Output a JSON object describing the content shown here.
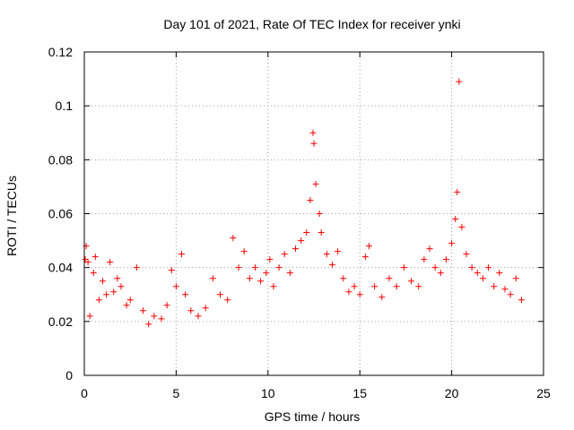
{
  "chart_data": {
    "type": "scatter",
    "title": "Day 101 of 2021, Rate Of TEC Index for receiver ynki",
    "xlabel": "GPS time / hours",
    "ylabel": "ROTI / TECUs",
    "xlim": [
      0,
      25
    ],
    "ylim": [
      0,
      0.12
    ],
    "xticks": [
      0,
      5,
      10,
      15,
      20,
      25
    ],
    "xtick_labels": [
      "0",
      "5",
      "10",
      "15",
      "20",
      "25"
    ],
    "yticks": [
      0,
      0.02,
      0.04,
      0.06,
      0.08,
      0.1,
      0.12
    ],
    "ytick_labels": [
      "0",
      "0.02",
      "0.04",
      "0.06",
      "0.08",
      "0.1",
      "0.12"
    ],
    "grid": true,
    "marker": "+",
    "color": "#ff0000",
    "series": [
      {
        "name": "ROTI",
        "points": [
          [
            0.05,
            0.043
          ],
          [
            0.1,
            0.048
          ],
          [
            0.2,
            0.042
          ],
          [
            0.3,
            0.022
          ],
          [
            0.5,
            0.038
          ],
          [
            0.6,
            0.044
          ],
          [
            0.8,
            0.028
          ],
          [
            1.0,
            0.035
          ],
          [
            1.2,
            0.03
          ],
          [
            1.4,
            0.042
          ],
          [
            1.6,
            0.031
          ],
          [
            1.8,
            0.036
          ],
          [
            2.0,
            0.033
          ],
          [
            2.3,
            0.026
          ],
          [
            2.5,
            0.028
          ],
          [
            2.85,
            0.04
          ],
          [
            3.2,
            0.024
          ],
          [
            3.5,
            0.019
          ],
          [
            3.8,
            0.022
          ],
          [
            4.2,
            0.021
          ],
          [
            4.5,
            0.026
          ],
          [
            4.75,
            0.039
          ],
          [
            5.0,
            0.033
          ],
          [
            5.3,
            0.045
          ],
          [
            5.5,
            0.03
          ],
          [
            5.8,
            0.024
          ],
          [
            6.2,
            0.022
          ],
          [
            6.6,
            0.025
          ],
          [
            7.0,
            0.036
          ],
          [
            7.4,
            0.03
          ],
          [
            7.8,
            0.028
          ],
          [
            8.1,
            0.051
          ],
          [
            8.4,
            0.04
          ],
          [
            8.7,
            0.046
          ],
          [
            9.0,
            0.036
          ],
          [
            9.3,
            0.04
          ],
          [
            9.6,
            0.035
          ],
          [
            9.9,
            0.038
          ],
          [
            10.1,
            0.043
          ],
          [
            10.3,
            0.033
          ],
          [
            10.6,
            0.04
          ],
          [
            10.9,
            0.045
          ],
          [
            11.2,
            0.038
          ],
          [
            11.5,
            0.047
          ],
          [
            11.8,
            0.05
          ],
          [
            12.1,
            0.053
          ],
          [
            12.3,
            0.065
          ],
          [
            12.45,
            0.09
          ],
          [
            12.5,
            0.086
          ],
          [
            12.6,
            0.071
          ],
          [
            12.8,
            0.06
          ],
          [
            12.9,
            0.053
          ],
          [
            13.2,
            0.045
          ],
          [
            13.5,
            0.041
          ],
          [
            13.8,
            0.046
          ],
          [
            14.1,
            0.036
          ],
          [
            14.4,
            0.031
          ],
          [
            14.7,
            0.033
          ],
          [
            15.0,
            0.03
          ],
          [
            15.3,
            0.044
          ],
          [
            15.5,
            0.048
          ],
          [
            15.8,
            0.033
          ],
          [
            16.2,
            0.029
          ],
          [
            16.6,
            0.036
          ],
          [
            17.0,
            0.033
          ],
          [
            17.4,
            0.04
          ],
          [
            17.8,
            0.035
          ],
          [
            18.2,
            0.033
          ],
          [
            18.5,
            0.043
          ],
          [
            18.8,
            0.047
          ],
          [
            19.1,
            0.04
          ],
          [
            19.4,
            0.038
          ],
          [
            19.7,
            0.043
          ],
          [
            20.0,
            0.049
          ],
          [
            20.2,
            0.058
          ],
          [
            20.3,
            0.068
          ],
          [
            20.4,
            0.109
          ],
          [
            20.55,
            0.055
          ],
          [
            20.8,
            0.045
          ],
          [
            21.1,
            0.04
          ],
          [
            21.4,
            0.038
          ],
          [
            21.7,
            0.036
          ],
          [
            22.0,
            0.04
          ],
          [
            22.3,
            0.033
          ],
          [
            22.6,
            0.038
          ],
          [
            22.9,
            0.032
          ],
          [
            23.2,
            0.03
          ],
          [
            23.5,
            0.036
          ],
          [
            23.8,
            0.028
          ]
        ]
      }
    ]
  }
}
